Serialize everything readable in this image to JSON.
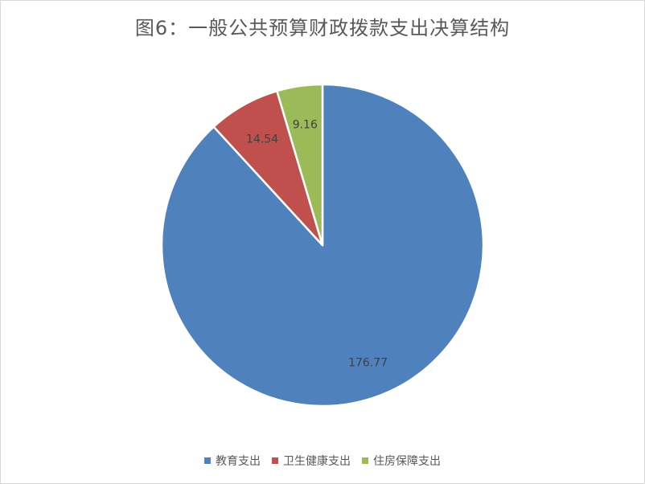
{
  "chart_data": {
    "type": "pie",
    "title": "图6：一般公共预算财政拨款支出决算结构",
    "categories": [
      "教育支出",
      "卫生健康支出",
      "住房保障支出"
    ],
    "values": [
      176.77,
      14.54,
      9.16
    ],
    "data_labels": [
      "176.77",
      "14.54",
      "9.16"
    ],
    "colors": [
      "#4f81bd",
      "#c0504d",
      "#9bbb59"
    ],
    "legend_position": "bottom",
    "start_angle": "12 o'clock, clockwise"
  }
}
